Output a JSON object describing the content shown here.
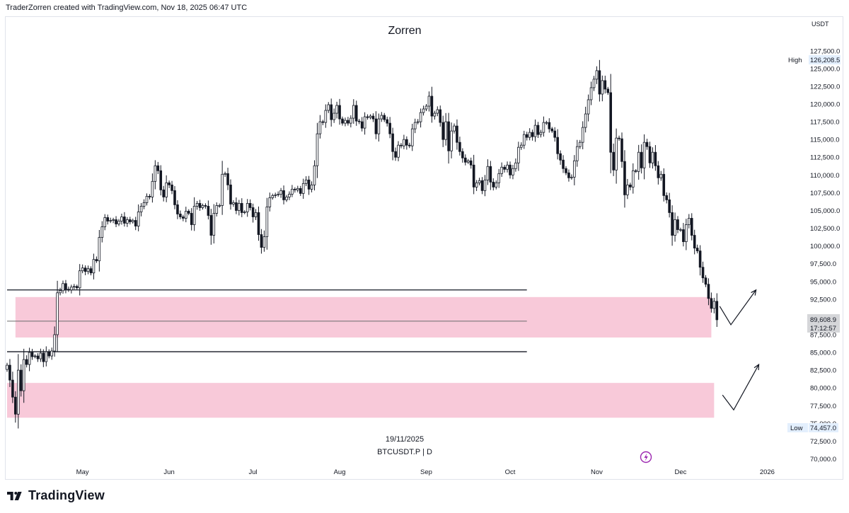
{
  "credit": "TraderZorren created with TradingView.com, Nov 18, 2025 06:47 UTC",
  "brand": "TradingView",
  "chart_data": {
    "type": "candlestick",
    "title": "Zorren",
    "date_label": "19/11/2025",
    "symbol_label": "BTCUSDT.P | D",
    "currency": "USDT",
    "high_label": "High",
    "high_value": "126,208.5",
    "low_label": "Low",
    "low_value": "74,457.0",
    "last_price": "89,608.9",
    "countdown": "17:12:57",
    "ylim": [
      70000,
      130000
    ],
    "y_ticks": [
      "70,000.0",
      "72,500.0",
      "75,000.0",
      "77,500.0",
      "80,000.0",
      "82,500.0",
      "85,000.0",
      "87,500.0",
      "90,000.0",
      "92,500.0",
      "95,000.0",
      "97,500.0",
      "100,000.0",
      "102,500.0",
      "105,000.0",
      "107,500.0",
      "110,000.0",
      "112,500.0",
      "115,000.0",
      "117,500.0",
      "120,000.0",
      "122,500.0",
      "125,000.0",
      "127,500.0"
    ],
    "x_labels": [
      {
        "label": "May",
        "date": "2025-05-01"
      },
      {
        "label": "Jun",
        "date": "2025-06-01"
      },
      {
        "label": "Jul",
        "date": "2025-07-01"
      },
      {
        "label": "Aug",
        "date": "2025-08-01"
      },
      {
        "label": "Sep",
        "date": "2025-09-01"
      },
      {
        "label": "Oct",
        "date": "2025-10-01"
      },
      {
        "label": "Nov",
        "date": "2025-11-01"
      },
      {
        "label": "Dec",
        "date": "2025-12-01"
      },
      {
        "label": "2026",
        "date": "2026-01-01"
      }
    ],
    "first_date": "2025-04-04",
    "closes": [
      83200,
      81100,
      78700,
      76300,
      82500,
      79600,
      84000,
      83300,
      85000,
      84400,
      84500,
      84100,
      84900,
      83700,
      85100,
      84500,
      85200,
      87500,
      93400,
      93700,
      94700,
      93900,
      93800,
      94200,
      94300,
      94100,
      96500,
      96900,
      96400,
      96800,
      96200,
      98100,
      97900,
      101200,
      102700,
      104000,
      103500,
      103600,
      103700,
      103100,
      103500,
      104100,
      103200,
      103700,
      103400,
      103600,
      102800,
      104800,
      105600,
      106100,
      107000,
      106900,
      109100,
      111300,
      110600,
      107900,
      106900,
      108900,
      108600,
      107800,
      105800,
      104500,
      104100,
      103900,
      104900,
      104600,
      103000,
      105600,
      106000,
      105400,
      105700,
      105600,
      104300,
      101500,
      104600,
      105700,
      105700,
      110100,
      110200,
      108600,
      105900,
      106100,
      105000,
      106000,
      104700,
      104800,
      106000,
      105400,
      104100,
      104700,
      101600,
      99800,
      101300,
      105500,
      106800,
      107100,
      107200,
      107300,
      107800,
      106500,
      106900,
      107300,
      108000,
      107900,
      108100,
      107400,
      108800,
      109300,
      108000,
      108600,
      111300,
      115800,
      117500,
      117400,
      119100,
      119900,
      117800,
      118700,
      119800,
      117900,
      117300,
      117700,
      117300,
      118000,
      119800,
      117600,
      117500,
      116600,
      118200,
      118100,
      118300,
      117900,
      115800,
      117900,
      118400,
      117800,
      117300,
      115800,
      113300,
      112500,
      114200,
      114100,
      115000,
      114200,
      114100,
      116500,
      117400,
      117500,
      118800,
      119300,
      119700,
      121100,
      118300,
      118700,
      119200,
      117400,
      115000,
      117500,
      113400,
      116200,
      116900,
      114600,
      113300,
      112400,
      111800,
      112000,
      111400,
      108300,
      108900,
      109200,
      107800,
      109300,
      111200,
      109000,
      108300,
      108900,
      110200,
      111100,
      110800,
      111400,
      110000,
      110900,
      111700,
      113900,
      114200,
      115700,
      115300,
      116000,
      115400,
      117000,
      115700,
      116000,
      117400,
      117400,
      116500,
      116200,
      115300,
      113000,
      112100,
      110900,
      110300,
      109600,
      109700,
      112000,
      114000,
      114600,
      116700,
      118600,
      120600,
      122300,
      123500,
      124700,
      121400,
      123300,
      122100,
      121600,
      113200,
      110700,
      115200,
      115100,
      111900,
      107200,
      108600,
      108300,
      110600,
      110500,
      113200,
      111000,
      114600,
      114000,
      111700,
      113200,
      111300,
      109600,
      110100,
      107100,
      106500,
      104700,
      101500,
      103700,
      102300,
      102300,
      100600,
      103000,
      103900,
      101500,
      99700,
      99300,
      97000,
      95500,
      94600,
      92600,
      91200,
      92200,
      89600
    ],
    "zones": [
      {
        "name": "upper-demand-zone",
        "low": 87100,
        "high": 92800,
        "start": "2025-04-07",
        "end": "2025-12-12"
      },
      {
        "name": "lower-demand-zone",
        "low": 75800,
        "high": 80700,
        "start": "2025-04-04",
        "end": "2025-12-13"
      }
    ],
    "hlines": [
      {
        "name": "resistance-line",
        "value": 93800,
        "start": "2025-04-04",
        "end": "2025-10-07"
      },
      {
        "name": "midline",
        "value": 89400,
        "start": "2025-04-04",
        "end": "2025-10-07"
      },
      {
        "name": "support-line",
        "value": 85100,
        "start": "2025-04-04",
        "end": "2025-10-07"
      }
    ],
    "projections": [
      {
        "name": "upper-bounce-arrow",
        "points": [
          [
            "2025-12-15",
            91500
          ],
          [
            "2025-12-19",
            88900
          ],
          [
            "2025-12-28",
            93800
          ]
        ]
      },
      {
        "name": "lower-bounce-arrow",
        "points": [
          [
            "2025-12-16",
            79000
          ],
          [
            "2025-12-20",
            76900
          ],
          [
            "2025-12-29",
            83300
          ]
        ]
      }
    ]
  }
}
